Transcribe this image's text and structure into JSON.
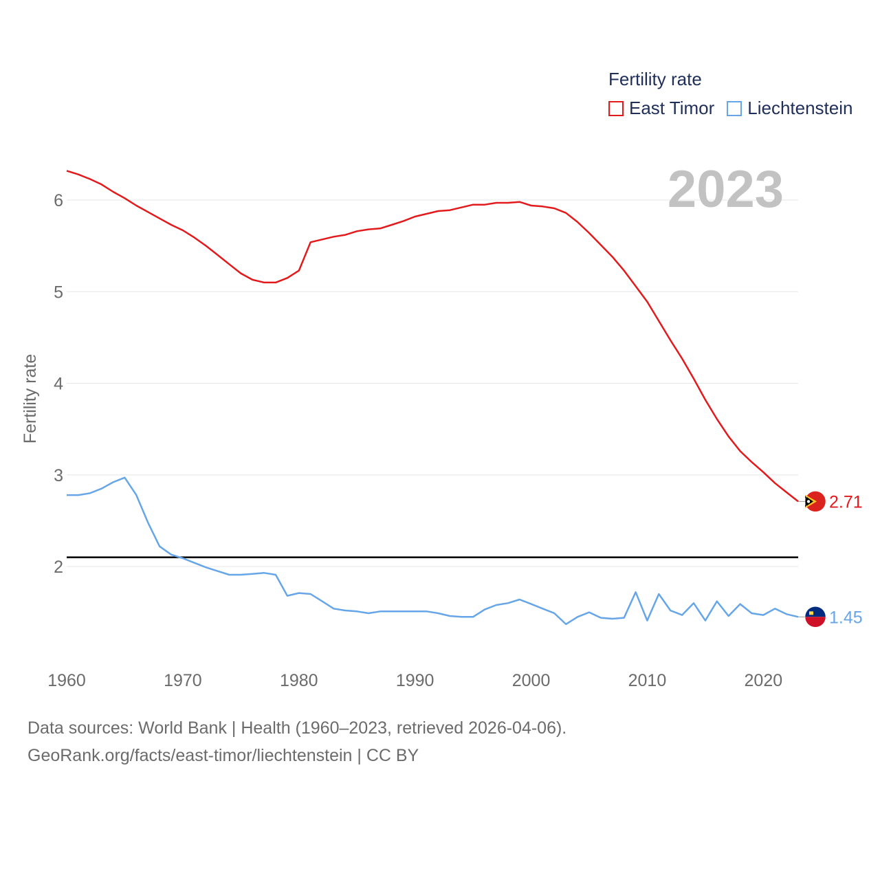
{
  "legend": {
    "title": "Fertility rate",
    "items": [
      {
        "label": "East Timor",
        "color": "#e31a1c"
      },
      {
        "label": "Liechtenstein",
        "color": "#66a6e8"
      }
    ]
  },
  "year_label": "2023",
  "footer": {
    "line1": "Data sources: World Bank | Health (1960–2023, retrieved 2026-04-06).",
    "line2": "GeoRank.org/facts/east-timor/liechtenstein | CC BY"
  },
  "chart_data": {
    "type": "line",
    "ylabel": "Fertility rate",
    "xlabel": "",
    "xlim": [
      1960,
      2023
    ],
    "ylim": [
      1.0,
      6.5
    ],
    "x_ticks": [
      1960,
      1970,
      1980,
      1990,
      2000,
      2010,
      2020
    ],
    "y_ticks": [
      2,
      3,
      4,
      5,
      6
    ],
    "grid": true,
    "reference_line": {
      "y": 2.1,
      "color": "#000000"
    },
    "x": [
      1960,
      1961,
      1962,
      1963,
      1964,
      1965,
      1966,
      1967,
      1968,
      1969,
      1970,
      1971,
      1972,
      1973,
      1974,
      1975,
      1976,
      1977,
      1978,
      1979,
      1980,
      1981,
      1982,
      1983,
      1984,
      1985,
      1986,
      1987,
      1988,
      1989,
      1990,
      1991,
      1992,
      1993,
      1994,
      1995,
      1996,
      1997,
      1998,
      1999,
      2000,
      2001,
      2002,
      2003,
      2004,
      2005,
      2006,
      2007,
      2008,
      2009,
      2010,
      2011,
      2012,
      2013,
      2014,
      2015,
      2016,
      2017,
      2018,
      2019,
      2020,
      2021,
      2022,
      2023
    ],
    "series": [
      {
        "name": "East Timor",
        "color": "#e31a1c",
        "end_label": "2.71",
        "values": [
          6.32,
          6.28,
          6.23,
          6.17,
          6.09,
          6.02,
          5.94,
          5.87,
          5.8,
          5.73,
          5.67,
          5.59,
          5.5,
          5.4,
          5.3,
          5.2,
          5.13,
          5.1,
          5.1,
          5.15,
          5.23,
          5.54,
          5.57,
          5.6,
          5.62,
          5.66,
          5.68,
          5.69,
          5.73,
          5.77,
          5.82,
          5.85,
          5.88,
          5.89,
          5.92,
          5.95,
          5.95,
          5.97,
          5.97,
          5.98,
          5.94,
          5.93,
          5.91,
          5.86,
          5.76,
          5.64,
          5.51,
          5.38,
          5.23,
          5.06,
          4.89,
          4.68,
          4.47,
          4.27,
          4.05,
          3.82,
          3.61,
          3.42,
          3.26,
          3.14,
          3.03,
          2.91,
          2.81,
          2.71
        ]
      },
      {
        "name": "Liechtenstein",
        "color": "#66a6e8",
        "end_label": "1.45",
        "values": [
          2.78,
          2.78,
          2.8,
          2.85,
          2.92,
          2.97,
          2.78,
          2.48,
          2.22,
          2.13,
          2.09,
          2.04,
          1.99,
          1.95,
          1.91,
          1.91,
          1.92,
          1.93,
          1.91,
          1.68,
          1.71,
          1.7,
          1.62,
          1.54,
          1.52,
          1.51,
          1.49,
          1.51,
          1.51,
          1.51,
          1.51,
          1.51,
          1.49,
          1.46,
          1.45,
          1.45,
          1.53,
          1.58,
          1.6,
          1.64,
          1.59,
          1.54,
          1.49,
          1.37,
          1.45,
          1.5,
          1.44,
          1.43,
          1.44,
          1.72,
          1.41,
          1.7,
          1.52,
          1.47,
          1.6,
          1.41,
          1.62,
          1.46,
          1.59,
          1.49,
          1.47,
          1.54,
          1.48,
          1.45
        ]
      }
    ]
  }
}
